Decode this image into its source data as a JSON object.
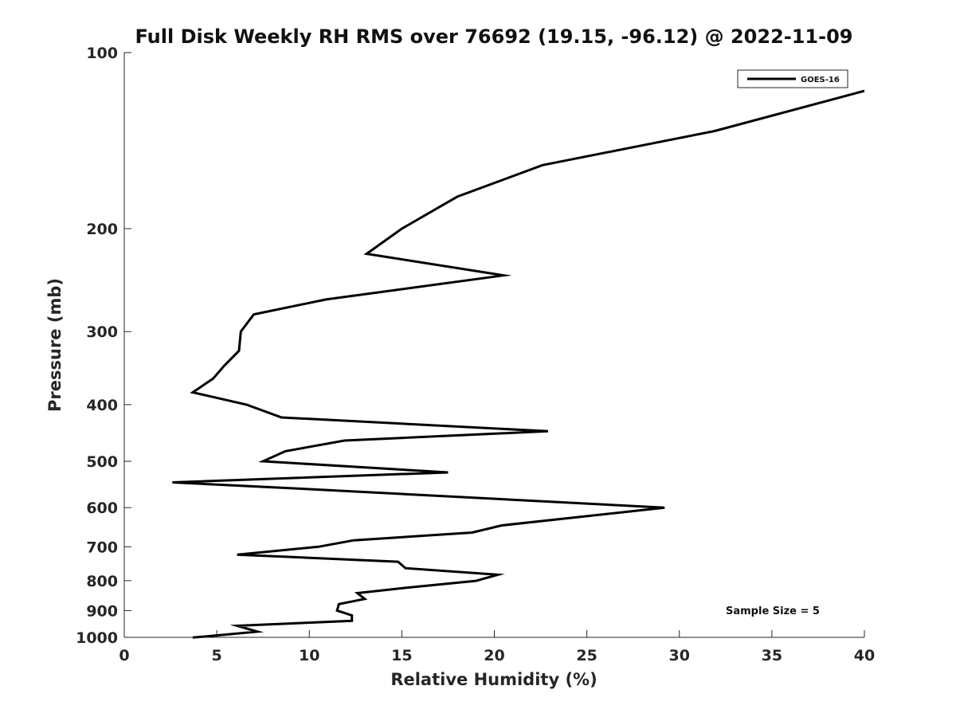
{
  "chart_data": {
    "type": "line",
    "title": "Full Disk Weekly RH RMS over 76692 (19.15, -96.12) @ 2022-11-09",
    "xlabel": "Relative Humidity (%)",
    "ylabel": "Pressure (mb)",
    "xlim": [
      0,
      40
    ],
    "ylim": [
      100,
      1000
    ],
    "y_scale": "log",
    "y_reversed": true,
    "x_ticks": [
      0,
      5,
      10,
      15,
      20,
      25,
      30,
      35,
      40
    ],
    "y_ticks": [
      100,
      200,
      300,
      400,
      500,
      600,
      700,
      800,
      900,
      1000
    ],
    "grid": false,
    "legend_position": "top-right",
    "annotation": "Sample Size = 5",
    "series": [
      {
        "name": "GOES-16",
        "color": "#000000",
        "points": [
          [
            40.0,
            116.3
          ],
          [
            31.9,
            136.2
          ],
          [
            22.6,
            155.8
          ],
          [
            18.0,
            176.4
          ],
          [
            15.0,
            200.0
          ],
          [
            13.1,
            220.9
          ],
          [
            20.5,
            240.5
          ],
          [
            10.9,
            264.4
          ],
          [
            7.0,
            280.3
          ],
          [
            6.3,
            300.0
          ],
          [
            6.2,
            323.6
          ],
          [
            5.4,
            343.3
          ],
          [
            4.8,
            361.0
          ],
          [
            3.7,
            381.1
          ],
          [
            6.6,
            400.0
          ],
          [
            8.5,
            420.7
          ],
          [
            22.9,
            444.2
          ],
          [
            11.9,
            460.8
          ],
          [
            8.7,
            480.5
          ],
          [
            7.5,
            500.0
          ],
          [
            17.5,
            522.3
          ],
          [
            2.6,
            543.2
          ],
          [
            9.6,
            557.1
          ],
          [
            29.2,
            600.0
          ],
          [
            20.4,
            643.5
          ],
          [
            18.8,
            662.0
          ],
          [
            12.4,
            682.5
          ],
          [
            10.5,
            700.0
          ],
          [
            6.1,
            722.0
          ],
          [
            14.8,
            742.5
          ],
          [
            15.2,
            761.6
          ],
          [
            20.2,
            781.4
          ],
          [
            19.0,
            800.7
          ],
          [
            15.3,
            822.2
          ],
          [
            12.6,
            840.3
          ],
          [
            13.0,
            859.8
          ],
          [
            11.6,
            877.4
          ],
          [
            11.5,
            900.1
          ],
          [
            12.3,
            917.4
          ],
          [
            12.3,
            937.1
          ],
          [
            6.1,
            955.6
          ],
          [
            7.2,
            978.0
          ],
          [
            3.7,
            1001.0
          ]
        ]
      }
    ]
  }
}
